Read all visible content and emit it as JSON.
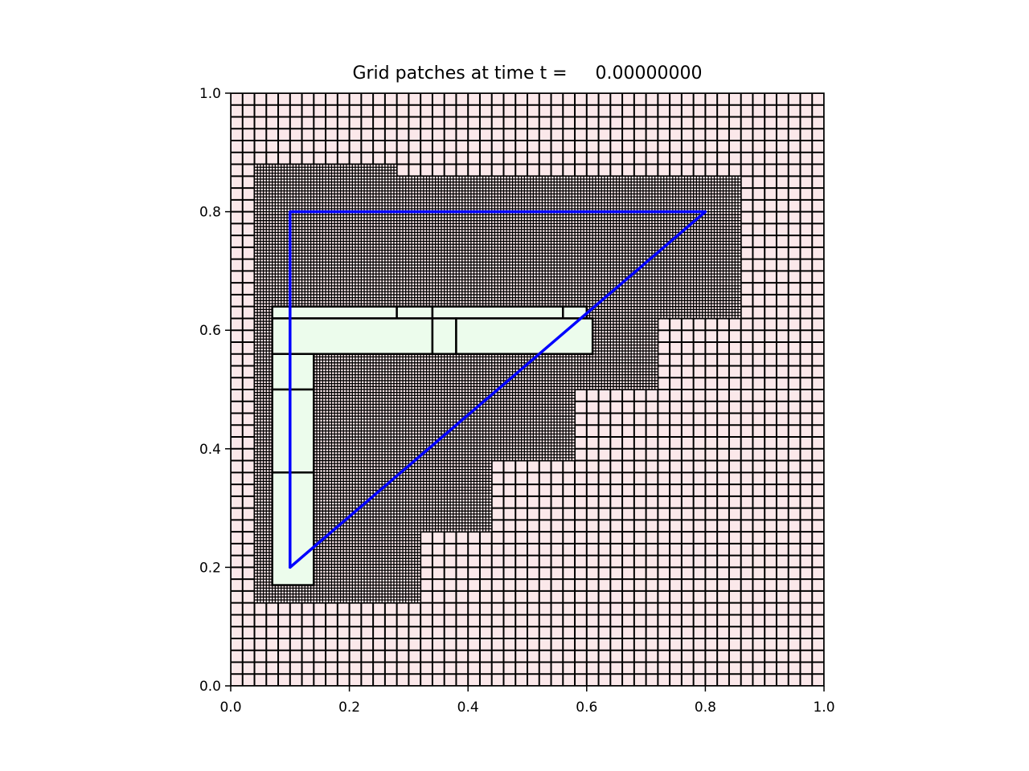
{
  "chart_data": {
    "type": "line",
    "title": "Grid patches at time t =     0.00000000",
    "xlabel": "",
    "ylabel": "",
    "xlim": [
      0.0,
      1.0
    ],
    "ylim": [
      0.0,
      1.0
    ],
    "xticks": [
      "0.0",
      "0.2",
      "0.4",
      "0.6",
      "0.8",
      "1.0"
    ],
    "yticks": [
      "0.0",
      "0.2",
      "0.4",
      "0.6",
      "0.8",
      "1.0"
    ],
    "grid": false,
    "levels": [
      {
        "level": 1,
        "fill": "#fbe8ea",
        "cell_size": 0.02,
        "patches": [
          [
            0.0,
            1.0,
            0.0,
            1.0
          ]
        ]
      },
      {
        "level": 2,
        "fill": "#fbe8ea",
        "cell_size": 0.005,
        "patches": [
          [
            0.04,
            0.28,
            0.62,
            0.88
          ],
          [
            0.28,
            0.86,
            0.62,
            0.86
          ],
          [
            0.04,
            0.72,
            0.5,
            0.62
          ],
          [
            0.04,
            0.58,
            0.38,
            0.5
          ],
          [
            0.04,
            0.44,
            0.26,
            0.38
          ],
          [
            0.04,
            0.32,
            0.14,
            0.26
          ]
        ]
      },
      {
        "level": 3,
        "fill": "#ecfcec",
        "cell_size": null,
        "patches": [
          [
            0.07,
            0.28,
            0.62,
            0.64
          ],
          [
            0.28,
            0.34,
            0.62,
            0.64
          ],
          [
            0.34,
            0.56,
            0.62,
            0.64
          ],
          [
            0.56,
            0.6,
            0.62,
            0.64
          ],
          [
            0.07,
            0.34,
            0.56,
            0.62
          ],
          [
            0.34,
            0.38,
            0.56,
            0.62
          ],
          [
            0.38,
            0.61,
            0.56,
            0.62
          ],
          [
            0.07,
            0.14,
            0.5,
            0.56
          ],
          [
            0.07,
            0.14,
            0.36,
            0.5
          ],
          [
            0.07,
            0.14,
            0.17,
            0.36
          ]
        ]
      }
    ],
    "series": [
      {
        "color": "#0000ff",
        "x": [
          0.1,
          0.1,
          0.8,
          0.1
        ],
        "y": [
          0.2,
          0.8,
          0.8,
          0.2
        ]
      }
    ]
  }
}
